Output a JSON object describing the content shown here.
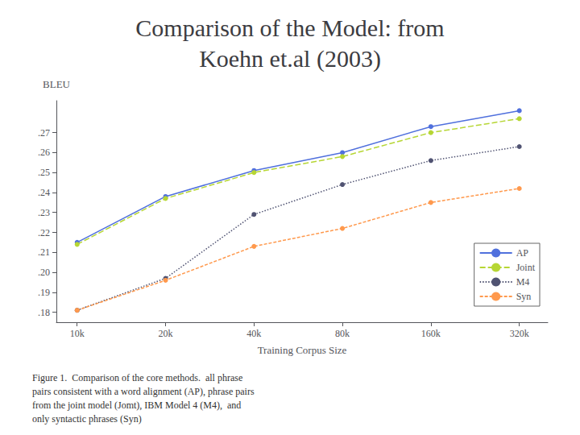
{
  "chart_data": {
    "type": "line",
    "title": "Comparison of the Model: from\nKoehn et.al (2003)",
    "xlabel": "Training Corpus Size",
    "ylabel": "BLEU",
    "annotation": "Figure 1.  Comparison of the core methods.  all phrase\npairs consistent with a word alignment (AP), phrase pairs\nfrom the joint model (Jomt), IBM Model 4 (M4),  and\nonly syntactic phrases (Syn)",
    "x": [
      10000,
      20000,
      40000,
      80000,
      160000,
      320000
    ],
    "series": [
      {
        "name": "AP",
        "line_style": "solid",
        "values": [
          0.215,
          0.238,
          0.251,
          0.26,
          0.273,
          0.281
        ]
      },
      {
        "name": "Joint",
        "line_style": "long dash",
        "values": [
          0.214,
          0.237,
          0.25,
          0.258,
          0.27,
          0.277
        ]
      },
      {
        "name": "M4",
        "line_style": "dotted",
        "values": [
          0.181,
          0.197,
          0.229,
          0.244,
          0.256,
          0.263
        ]
      },
      {
        "name": "Syn",
        "line_style": "dashed",
        "values": [
          0.181,
          0.196,
          0.213,
          0.222,
          0.235,
          0.242
        ]
      }
    ],
    "marker": "circle",
    "log": "x",
    "xlim": [
      8500,
      400000
    ],
    "xticks": [
      {
        "value": 10000,
        "label": "10k"
      },
      {
        "value": 20000,
        "label": "20k"
      },
      {
        "value": 40000,
        "label": "40k"
      },
      {
        "value": 80000,
        "label": "80k"
      },
      {
        "value": 160000,
        "label": "160k"
      },
      {
        "value": 320000,
        "label": "320k"
      }
    ],
    "ylim": [
      0.175,
      0.286
    ],
    "yticks": [
      {
        "value": 0.18,
        "label": ".18"
      },
      {
        "value": 0.19,
        "label": ".19"
      },
      {
        "value": 0.2,
        "label": ".20"
      },
      {
        "value": 0.21,
        "label": ".21"
      },
      {
        "value": 0.22,
        "label": ".22"
      },
      {
        "value": 0.23,
        "label": ".23"
      },
      {
        "value": 0.24,
        "label": ".24"
      },
      {
        "value": 0.25,
        "label": ".25"
      },
      {
        "value": 0.26,
        "label": ".26"
      },
      {
        "value": 0.27,
        "label": ".27"
      }
    ],
    "grid": false,
    "legend": "lower right"
  }
}
